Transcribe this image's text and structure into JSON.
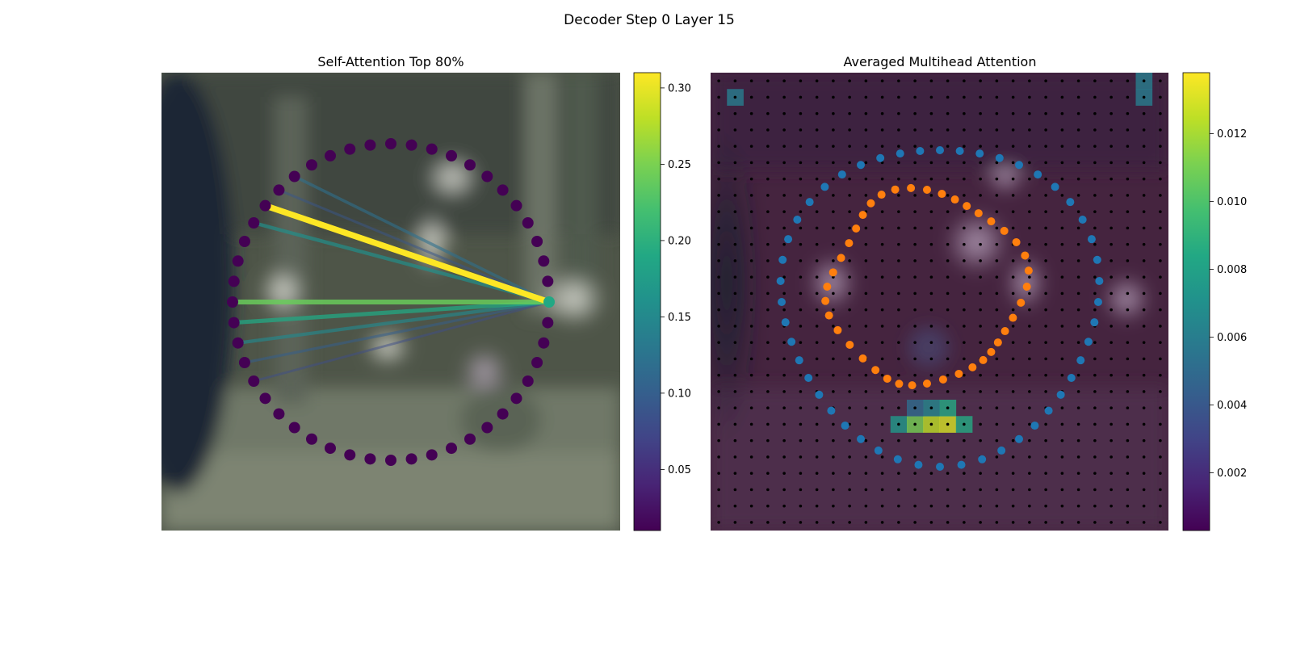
{
  "figure": {
    "suptitle": "Decoder Step 0 Layer 15"
  },
  "chart_data": [
    {
      "type": "scatter",
      "title": "Self-Attention Top 80%",
      "description_points": "48 query points on a circle; one source point connected by lines to the points it attends to",
      "n_points": 48,
      "circle_center": [
        0,
        0
      ],
      "source_index": 0,
      "attention_links": [
        {
          "target_index": 17,
          "weight": 0.12
        },
        {
          "target_index": 18,
          "weight": 0.09
        },
        {
          "target_index": 19,
          "weight": 0.31
        },
        {
          "target_index": 20,
          "weight": 0.16
        },
        {
          "target_index": 24,
          "weight": 0.24
        },
        {
          "target_index": 25,
          "weight": 0.19
        },
        {
          "target_index": 26,
          "weight": 0.15
        },
        {
          "target_index": 27,
          "weight": 0.1
        },
        {
          "target_index": 28,
          "weight": 0.08
        }
      ],
      "colorbar": {
        "min": 0.01,
        "max": 0.31,
        "ticks": [
          "0.05",
          "0.10",
          "0.15",
          "0.20",
          "0.25",
          "0.30"
        ],
        "tick_values": [
          0.05,
          0.1,
          0.15,
          0.2,
          0.25,
          0.3
        ],
        "colormap": "viridis"
      },
      "point_color": "#440154",
      "source_color": "#22a884"
    },
    {
      "type": "heatmap",
      "title": "Averaged Multihead Attention",
      "grid_size": [
        28,
        28
      ],
      "hotspots": [
        {
          "col": 11,
          "row": 21,
          "value": 0.0075
        },
        {
          "col": 12,
          "row": 21,
          "value": 0.011
        },
        {
          "col": 13,
          "row": 21,
          "value": 0.0125
        },
        {
          "col": 14,
          "row": 21,
          "value": 0.013
        },
        {
          "col": 15,
          "row": 21,
          "value": 0.0085
        },
        {
          "col": 14,
          "row": 20,
          "value": 0.0085
        },
        {
          "col": 13,
          "row": 20,
          "value": 0.0065
        },
        {
          "col": 12,
          "row": 20,
          "value": 0.005
        },
        {
          "col": 1,
          "row": 1,
          "value": 0.006
        },
        {
          "col": 26,
          "row": 0,
          "value": 0.006
        },
        {
          "col": 26,
          "row": 1,
          "value": 0.006
        }
      ],
      "outer_ring": {
        "n": 48,
        "color": "#1f77b4"
      },
      "inner_ring": {
        "n": 40,
        "color": "#ff7f0e"
      },
      "colorbar": {
        "min": 0.0003,
        "max": 0.0138,
        "ticks": [
          "0.002",
          "0.004",
          "0.006",
          "0.008",
          "0.010",
          "0.012"
        ],
        "tick_values": [
          0.002,
          0.004,
          0.006,
          0.008,
          0.01,
          0.012
        ],
        "colormap": "viridis"
      }
    }
  ]
}
